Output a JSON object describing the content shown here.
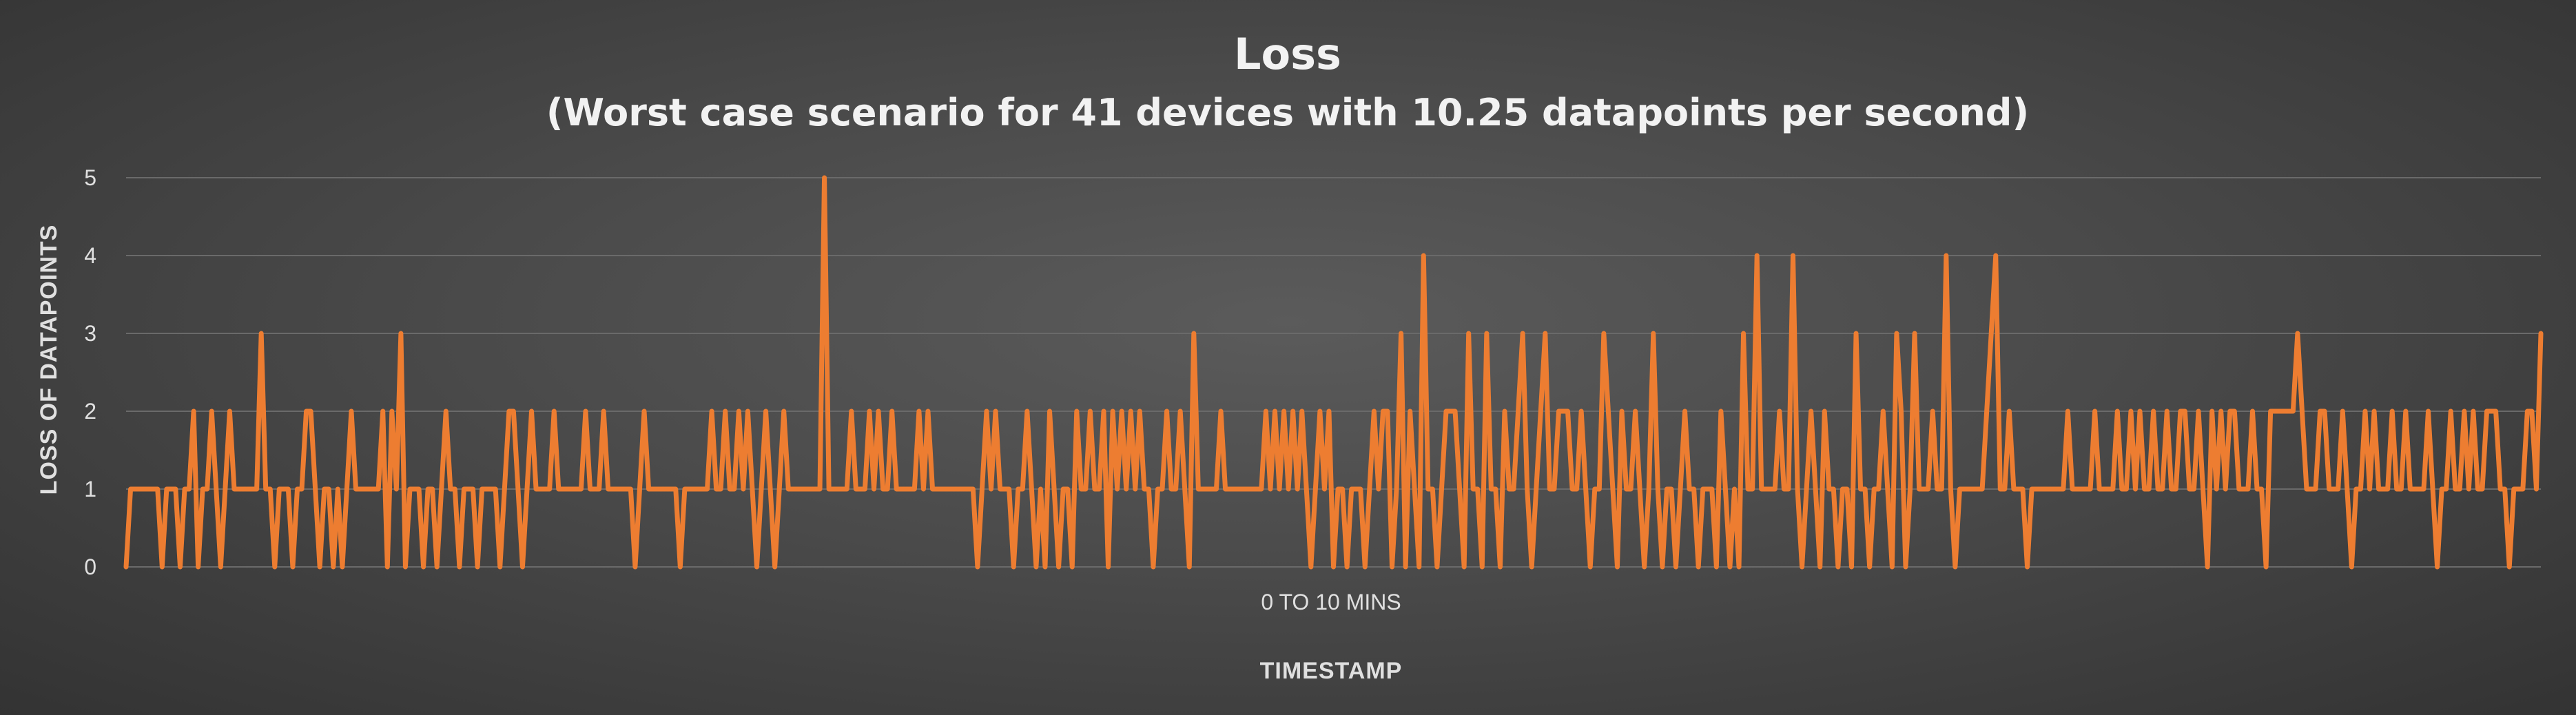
{
  "chart_data": {
    "type": "line",
    "title": "Loss",
    "subtitle": "(Worst case scenario for 41 devices with 10.25 datapoints per second)",
    "xlabel": "TIMESTAMP",
    "ylabel": "LOSS OF DATAPOINTS",
    "x_category_label": "0 TO 10 MINS",
    "ylim": [
      0,
      5
    ],
    "yticks": [
      0,
      1,
      2,
      3,
      4,
      5
    ],
    "grid": true,
    "legend": "none",
    "series": [
      {
        "color": "#ed7d31",
        "values": [
          0,
          1,
          1,
          1,
          1,
          1,
          1,
          1,
          0,
          1,
          1,
          1,
          0,
          1,
          1,
          2,
          0,
          1,
          1,
          2,
          1,
          0,
          1,
          2,
          1,
          1,
          1,
          1,
          1,
          1,
          3,
          1,
          1,
          0,
          1,
          1,
          1,
          0,
          1,
          1,
          2,
          2,
          1,
          0,
          1,
          1,
          0,
          1,
          0,
          1,
          2,
          1,
          1,
          1,
          1,
          1,
          1,
          2,
          0,
          2,
          1,
          3,
          0,
          1,
          1,
          1,
          0,
          1,
          1,
          0,
          1,
          2,
          1,
          1,
          0,
          1,
          1,
          1,
          0,
          1,
          1,
          1,
          1,
          0,
          1,
          2,
          2,
          1,
          0,
          1,
          2,
          1,
          1,
          1,
          1,
          2,
          1,
          1,
          1,
          1,
          1,
          1,
          2,
          1,
          1,
          1,
          2,
          1,
          1,
          1,
          1,
          1,
          1,
          0,
          1,
          2,
          1,
          1,
          1,
          1,
          1,
          1,
          1,
          0,
          1,
          1,
          1,
          1,
          1,
          1,
          2,
          1,
          1,
          2,
          1,
          1,
          2,
          1,
          2,
          1,
          0,
          1,
          2,
          1,
          0,
          1,
          2,
          1,
          1,
          1,
          1,
          1,
          1,
          1,
          1,
          5,
          1,
          1,
          1,
          1,
          1,
          2,
          1,
          1,
          1,
          2,
          1,
          2,
          1,
          1,
          2,
          1,
          1,
          1,
          1,
          1,
          2,
          1,
          2,
          1,
          1,
          1,
          1,
          1,
          1,
          1,
          1,
          1,
          1,
          0,
          1,
          2,
          1,
          2,
          1,
          1,
          1,
          0,
          1,
          1,
          2,
          1,
          0,
          1,
          0,
          2,
          1,
          0,
          1,
          1,
          0,
          2,
          1,
          1,
          2,
          1,
          1,
          2,
          0,
          2,
          1,
          2,
          1,
          2,
          1,
          2,
          1,
          1,
          0,
          1,
          1,
          2,
          1,
          1,
          2,
          1,
          0,
          3,
          1,
          1,
          1,
          1,
          1,
          2,
          1,
          1,
          1,
          1,
          1,
          1,
          1,
          1,
          1,
          2,
          1,
          2,
          1,
          2,
          1,
          2,
          1,
          2,
          1,
          0,
          1,
          2,
          1,
          2,
          0,
          1,
          1,
          0,
          1,
          1,
          1,
          0,
          1,
          2,
          1,
          2,
          2,
          0,
          1,
          3,
          0,
          2,
          1,
          0,
          4,
          1,
          1,
          0,
          1,
          2,
          2,
          2,
          1,
          0,
          3,
          1,
          1,
          0,
          3,
          1,
          1,
          0,
          2,
          1,
          1,
          2,
          3,
          1,
          0,
          1,
          2,
          3,
          1,
          1,
          2,
          2,
          2,
          1,
          1,
          2,
          1,
          0,
          1,
          1,
          3,
          2,
          1,
          0,
          2,
          1,
          1,
          2,
          1,
          0,
          1,
          3,
          1,
          0,
          1,
          1,
          0,
          1,
          2,
          1,
          1,
          0,
          1,
          1,
          1,
          0,
          2,
          1,
          0,
          1,
          0,
          3,
          1,
          1,
          4,
          1,
          1,
          1,
          1,
          2,
          1,
          1,
          4,
          1,
          0,
          1,
          2,
          1,
          0,
          2,
          1,
          1,
          0,
          1,
          1,
          0,
          3,
          1,
          1,
          0,
          1,
          1,
          2,
          1,
          0,
          3,
          2,
          0,
          1,
          3,
          1,
          1,
          1,
          2,
          1,
          1,
          4,
          1,
          0,
          1,
          1,
          1,
          1,
          1,
          1,
          2,
          3,
          4,
          1,
          1,
          2,
          1,
          1,
          1,
          0,
          1,
          1,
          1,
          1,
          1,
          1,
          1,
          1,
          2,
          1,
          1,
          1,
          1,
          1,
          2,
          1,
          1,
          1,
          1,
          2,
          1,
          1,
          2,
          1,
          2,
          1,
          1,
          2,
          1,
          1,
          2,
          1,
          1,
          2,
          2,
          1,
          1,
          2,
          1,
          0,
          2,
          1,
          2,
          1,
          2,
          2,
          1,
          1,
          1,
          2,
          1,
          1,
          0,
          2,
          2,
          2,
          2,
          2,
          2,
          3,
          2,
          1,
          1,
          1,
          2,
          2,
          1,
          1,
          1,
          2,
          1,
          0,
          1,
          1,
          2,
          1,
          2,
          1,
          1,
          1,
          2,
          1,
          1,
          2,
          1,
          1,
          1,
          1,
          2,
          1,
          0,
          1,
          1,
          2,
          1,
          1,
          2,
          1,
          2,
          1,
          1,
          2,
          2,
          2,
          1,
          1,
          0,
          1,
          1,
          1,
          2,
          2,
          1,
          3
        ]
      }
    ]
  }
}
